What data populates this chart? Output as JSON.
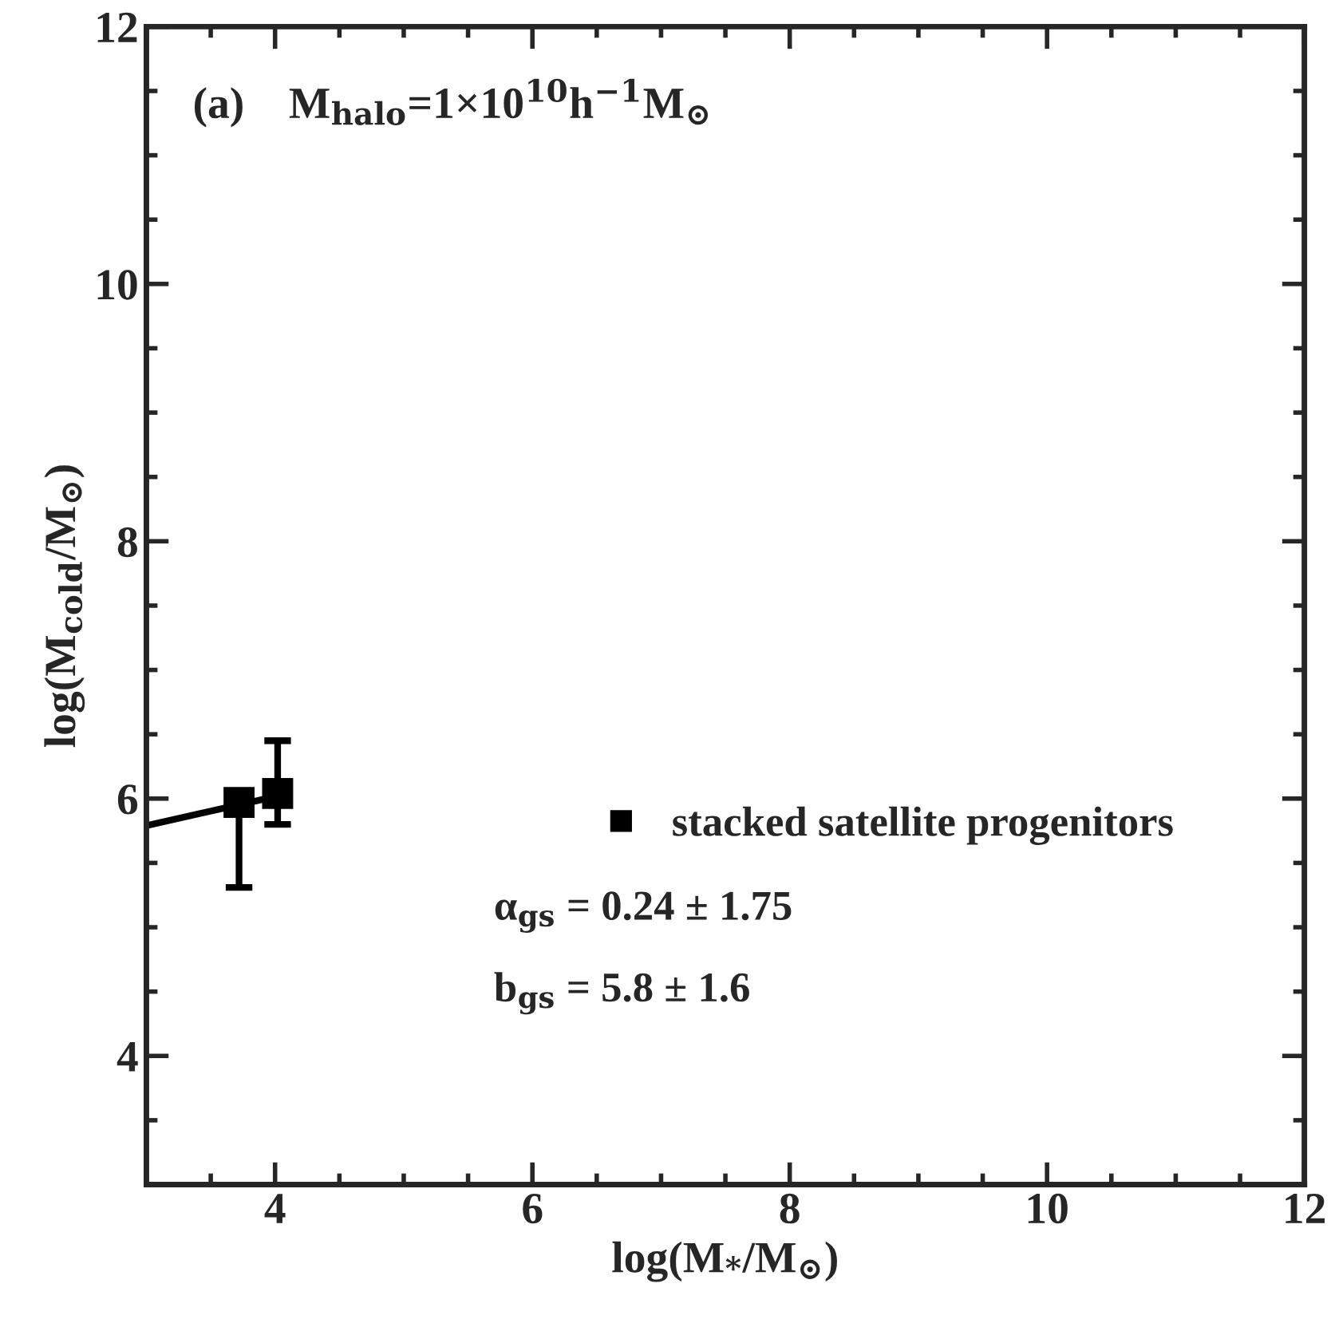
{
  "chart_data": {
    "type": "scatter",
    "xlabel": "log(M$_{*}$/M$_{⊙}$)",
    "ylabel": "log(M$_{cold}$/M$_{⊙}$)",
    "series": [
      {
        "name": "stacked satellite progenitors",
        "color": "#000000",
        "marker": "square",
        "x": [
          3.72,
          4.02
        ],
        "values": [
          5.97,
          6.04
        ],
        "errors": [
          [
            5.31,
            5.97
          ],
          [
            5.8,
            6.45
          ]
        ]
      },
      {
        "type": "line",
        "color": "#000000",
        "line_style": "solid",
        "marker": "none",
        "x": [
          3.0,
          4.02
        ],
        "values": [
          5.79,
          6.02
        ]
      }
    ],
    "annotations": [
      "(a)    M$_{halo}$=1×10$^{10}$h$^{−1}$M$_{⊙}$",
      "α$_{gs}$ = 0.24 ± 1.75",
      "b$_{gs}$ = 5.8 ± 1.6"
    ],
    "xlim": [
      3,
      12
    ],
    "ylim": [
      3,
      12
    ],
    "xticks": [
      4,
      6,
      8,
      10,
      12
    ],
    "yticks": [
      4,
      6,
      8,
      10,
      12
    ],
    "grid": false,
    "legend": "right"
  }
}
